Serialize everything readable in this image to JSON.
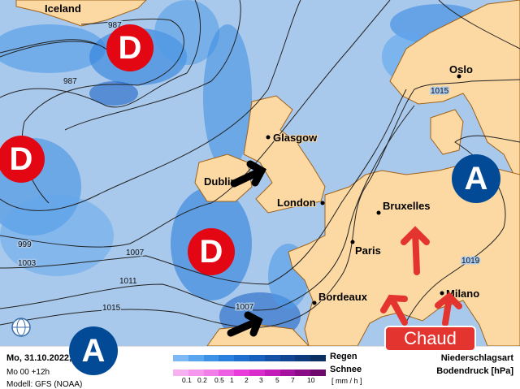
{
  "map": {
    "colors": {
      "ocean": "#a9c9ec",
      "land": "#fcd9a3",
      "border": "#a0621a",
      "low": "#e30613",
      "high": "#034a96",
      "warm_arrow": "#e3342f"
    },
    "cities": [
      "Iceland",
      "Glasgow",
      "Dublin",
      "London",
      "Bruxelles",
      "Paris",
      "Bordeaux",
      "Milano",
      "Oslo"
    ],
    "isobar_labels": [
      "987",
      "987",
      "999",
      "1003",
      "1007",
      "1007",
      "1011",
      "1015",
      "1015",
      "1019"
    ],
    "lows": [
      "D",
      "D",
      "D"
    ],
    "highs": [
      "A",
      "A"
    ],
    "warm_label": "Chaud",
    "icons": [
      "globe-icon",
      "black-arrow-icon",
      "red-arrow-icon"
    ]
  },
  "footer": {
    "date": "Mo, 31.10.2022, 12 UTC",
    "run": "Mo 00 +12h",
    "model": "Modell: GFS (NOAA)",
    "rain_label": "Regen",
    "snow_label": "Schnee",
    "unit": "[ mm / h ]",
    "ticks": [
      "0.1",
      "0.2",
      "0.5",
      "1",
      "2",
      "3",
      "5",
      "7",
      "10"
    ],
    "rain_colors": [
      "#7db9f5",
      "#5aa6ee",
      "#3d92e6",
      "#2a80dc",
      "#1f6fcf",
      "#1860be",
      "#1452a8",
      "#0f4592",
      "#0c3a7a",
      "#0a2f62"
    ],
    "snow_colors": [
      "#f7b0f0",
      "#f597ec",
      "#f27ee8",
      "#ee5ee2",
      "#e93ddb",
      "#d82ccb",
      "#c21db8",
      "#a612a0",
      "#8a0c86",
      "#6e0a6b"
    ],
    "title1": "Niederschlagsart",
    "title2": "Bodendruck [hPa]"
  }
}
